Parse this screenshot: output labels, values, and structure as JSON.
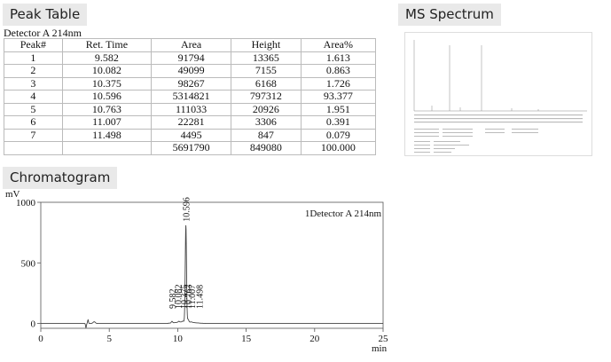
{
  "sections": {
    "peak_table": "Peak Table",
    "ms_spectrum": "MS Spectrum",
    "chromatogram": "Chromatogram"
  },
  "detector": "Detector A 214nm",
  "table": {
    "headers": [
      "Peak#",
      "Ret. Time",
      "Area",
      "Height",
      "Area%"
    ],
    "rows": [
      [
        "1",
        "9.582",
        "91794",
        "13365",
        "1.613"
      ],
      [
        "2",
        "10.082",
        "49099",
        "7155",
        "0.863"
      ],
      [
        "3",
        "10.375",
        "98267",
        "6168",
        "1.726"
      ],
      [
        "4",
        "10.596",
        "5314821",
        "797312",
        "93.377"
      ],
      [
        "5",
        "10.763",
        "111033",
        "20926",
        "1.951"
      ],
      [
        "6",
        "11.007",
        "22281",
        "3306",
        "0.391"
      ],
      [
        "7",
        "11.498",
        "4495",
        "847",
        "0.079"
      ]
    ],
    "total": [
      "",
      "",
      "5691790",
      "849080",
      "100.000"
    ]
  },
  "chart_data": {
    "type": "line",
    "ylabel": "mV",
    "xlabel": "min",
    "legend": "1Detector A 214nm",
    "xlim": [
      0,
      25
    ],
    "ylim": [
      -40,
      1000
    ],
    "xticks": [
      0,
      5,
      10,
      15,
      20,
      25
    ],
    "yticks": [
      0,
      500,
      1000
    ],
    "peaks": [
      {
        "label": "9.582",
        "x": 9.582,
        "height": 13.4
      },
      {
        "label": "10.082",
        "x": 10.082,
        "height": 7.2
      },
      {
        "label": "10.375",
        "x": 10.375,
        "height": 6.2
      },
      {
        "label": "10.596",
        "x": 10.596,
        "height": 797.3
      },
      {
        "label": "10.763",
        "x": 10.763,
        "height": 20.9
      },
      {
        "label": "11.007",
        "x": 11.007,
        "height": 3.3
      },
      {
        "label": "11.498",
        "x": 11.498,
        "height": 0.8
      }
    ],
    "line_color": "#444444"
  }
}
